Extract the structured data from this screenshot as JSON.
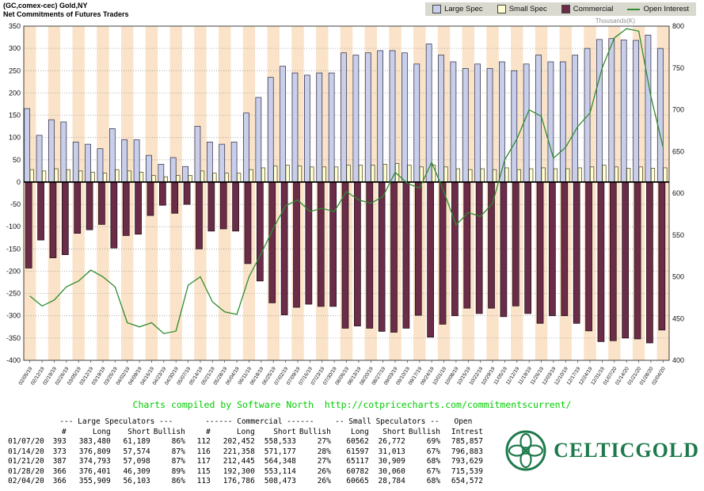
{
  "header": {
    "title_line1": "(GC,comex-cec) Gold,NY",
    "title_line2": "Net Commitments of Futures Traders"
  },
  "legend": {
    "items": [
      {
        "label": "Large Spec",
        "type": "box",
        "color": "#c9cfeb"
      },
      {
        "label": "Small Spec",
        "type": "box",
        "color": "#ffffd2"
      },
      {
        "label": "Commercial",
        "type": "box",
        "color": "#6a2c46"
      },
      {
        "label": "Open Interest",
        "type": "line",
        "color": "#2f8b2f"
      }
    ]
  },
  "chart_data": {
    "type": "bar",
    "title": "Net Commitments of Futures Traders - (GC,comex-cec) Gold,NY",
    "stripe_color": "#fae3c8",
    "grid": true,
    "legend_position": "top-right",
    "left_axis": {
      "min": -400,
      "max": 350,
      "step": 50
    },
    "right_axis": {
      "min": 400,
      "max": 800,
      "step": 50,
      "title": "Thousands(K)"
    },
    "x": [
      "02/05/19",
      "02/12/19",
      "02/19/19",
      "02/26/19",
      "03/05/19",
      "03/12/19",
      "03/19/19",
      "03/26/19",
      "04/02/19",
      "04/09/19",
      "04/16/19",
      "04/23/19",
      "04/30/19",
      "05/07/19",
      "05/14/19",
      "05/21/19",
      "05/28/19",
      "06/04/19",
      "06/11/19",
      "06/18/19",
      "06/25/19",
      "07/02/19",
      "07/09/19",
      "07/16/19",
      "07/23/19",
      "07/30/19",
      "08/06/19",
      "08/13/19",
      "08/20/19",
      "08/27/19",
      "09/03/19",
      "09/10/19",
      "09/17/19",
      "09/24/19",
      "10/01/19",
      "10/08/19",
      "10/15/19",
      "10/22/19",
      "10/29/19",
      "11/05/19",
      "11/12/19",
      "11/19/19",
      "11/26/19",
      "12/03/19",
      "12/10/19",
      "12/17/19",
      "12/24/19",
      "12/31/19",
      "01/07/20",
      "01/14/20",
      "01/21/20",
      "01/28/20",
      "02/04/20"
    ],
    "series": [
      {
        "name": "Large Spec",
        "type": "bar",
        "axis": "left",
        "color": "#c9cfeb",
        "values": [
          165,
          105,
          140,
          135,
          90,
          85,
          75,
          120,
          95,
          95,
          60,
          40,
          55,
          35,
          125,
          90,
          85,
          90,
          155,
          190,
          235,
          260,
          245,
          240,
          245,
          245,
          290,
          285,
          290,
          295,
          295,
          290,
          265,
          310,
          285,
          270,
          255,
          265,
          255,
          270,
          250,
          265,
          285,
          270,
          270,
          285,
          300,
          320,
          322,
          319,
          318,
          330,
          300
        ]
      },
      {
        "name": "Small Spec",
        "type": "bar",
        "axis": "left",
        "color": "#ffffd2",
        "values": [
          28,
          25,
          30,
          28,
          25,
          22,
          20,
          28,
          25,
          22,
          15,
          12,
          15,
          15,
          25,
          20,
          20,
          20,
          28,
          32,
          36,
          38,
          36,
          34,
          34,
          34,
          38,
          38,
          38,
          40,
          42,
          38,
          34,
          38,
          34,
          30,
          28,
          30,
          28,
          32,
          28,
          30,
          32,
          30,
          30,
          32,
          34,
          38,
          34,
          31,
          34,
          31,
          32
        ]
      },
      {
        "name": "Commercial",
        "type": "bar",
        "axis": "left",
        "color": "#6a2c46",
        "values": [
          -193,
          -130,
          -170,
          -163,
          -115,
          -107,
          -95,
          -148,
          -120,
          -117,
          -75,
          -52,
          -70,
          -50,
          -150,
          -110,
          -105,
          -110,
          -183,
          -222,
          -271,
          -298,
          -281,
          -274,
          -279,
          -279,
          -328,
          -323,
          -328,
          -335,
          -337,
          -328,
          -299,
          -348,
          -319,
          -300,
          -283,
          -295,
          -283,
          -302,
          -278,
          -295,
          -317,
          -300,
          -300,
          -317,
          -334,
          -358,
          -356,
          -350,
          -352,
          -361,
          -332
        ]
      },
      {
        "name": "Open Interest",
        "type": "line",
        "axis": "right",
        "color": "#2f8b2f",
        "values": [
          477,
          465,
          472,
          488,
          495,
          508,
          500,
          488,
          445,
          440,
          445,
          432,
          435,
          490,
          500,
          470,
          458,
          455,
          500,
          528,
          558,
          585,
          592,
          578,
          582,
          578,
          602,
          592,
          588,
          596,
          625,
          612,
          606,
          637,
          602,
          562,
          577,
          572,
          588,
          640,
          665,
          700,
          692,
          642,
          655,
          680,
          696,
          750,
          786,
          797,
          794,
          716,
          655
        ]
      }
    ]
  },
  "footer": {
    "credit": "Charts compiled by Software North  http://cotpricecharts.com/commitmentscurrent/"
  },
  "table": {
    "group_headers": [
      "--- Large Speculators ---",
      "------ Commercial ------",
      "-- Small Speculators --",
      "Open"
    ],
    "col_headers": [
      "",
      "#",
      "Long",
      "Short",
      "Bullish",
      "#",
      "Long",
      "Short",
      "Bullish",
      "Long",
      "Short",
      "Bullish",
      "Intrest"
    ],
    "rows": [
      [
        "01/07/20",
        "393",
        "383,480",
        "61,189",
        "86%",
        "112",
        "202,452",
        "558,533",
        "27%",
        "60562",
        "26,772",
        "69%",
        "785,857"
      ],
      [
        "01/14/20",
        "373",
        "376,809",
        "57,574",
        "87%",
        "116",
        "221,358",
        "571,177",
        "28%",
        "61597",
        "31,013",
        "67%",
        "796,883"
      ],
      [
        "01/21/20",
        "387",
        "374,793",
        "57,098",
        "87%",
        "117",
        "212,445",
        "564,348",
        "27%",
        "65117",
        "30,909",
        "68%",
        "793,629"
      ],
      [
        "01/28/20",
        "366",
        "376,401",
        "46,309",
        "89%",
        "115",
        "192,300",
        "553,114",
        "26%",
        "60782",
        "30,060",
        "67%",
        "715,539"
      ],
      [
        "02/04/20",
        "366",
        "355,909",
        "56,103",
        "86%",
        "113",
        "176,786",
        "508,473",
        "26%",
        "60665",
        "28,784",
        "68%",
        "654,572"
      ]
    ]
  },
  "logo": {
    "text": "CELTICGOLD",
    "color": "#1e7a4c"
  }
}
